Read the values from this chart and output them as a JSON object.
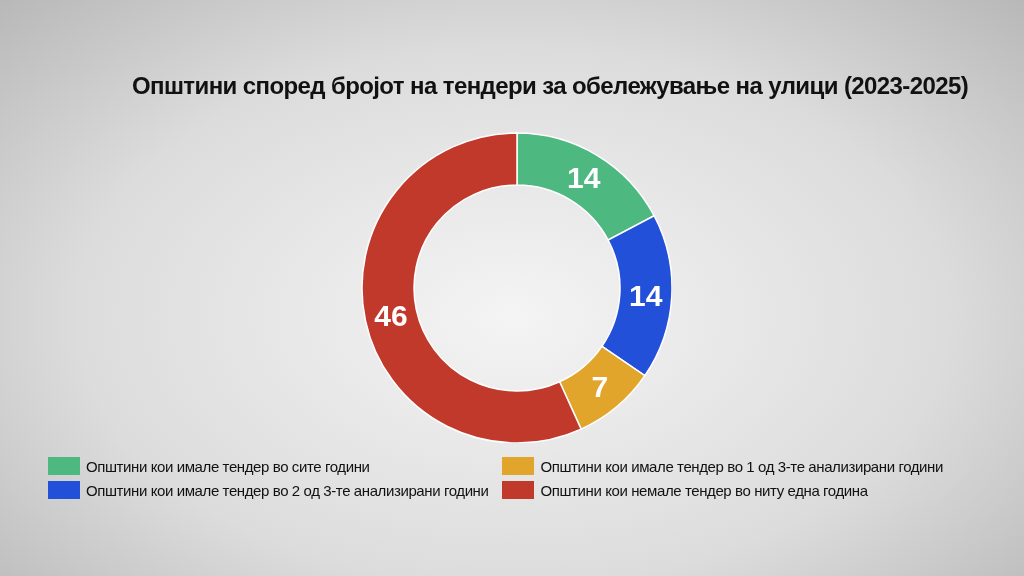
{
  "chart_data": {
    "type": "donut",
    "title": "Општини според бројот на тендери за обележување на улици (2023-2025)",
    "categories": [
      "Општини кои имале тендер во сите години",
      "Општини кои имале тендер во 2 од 3-те анализирани години",
      "Општини кои имале тендер во 1 од 3-те анализирани години",
      "Општини кои немале тендер во ниту една година"
    ],
    "values": [
      14,
      14,
      7,
      46
    ],
    "colors": [
      "#4db87f",
      "#2350d8",
      "#e0a52a",
      "#c0392b"
    ],
    "data_labels": true,
    "legend": "bottom"
  }
}
